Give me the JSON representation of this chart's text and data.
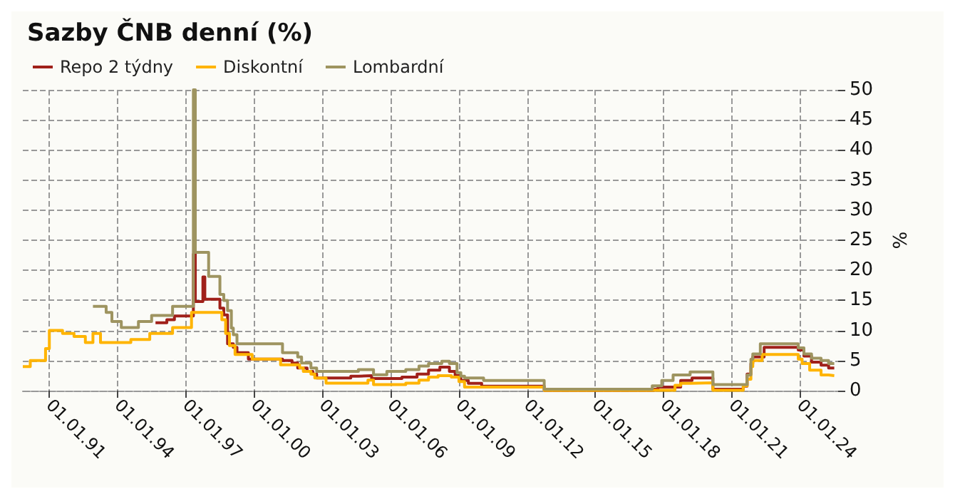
{
  "chart_data": {
    "type": "step",
    "title": "Sazby ČNB denní (%)",
    "ylabel": "%",
    "legend": "top left",
    "grid": true,
    "marker": "none",
    "line_style": "solid",
    "xlim": [
      "1989-11-01",
      "2025-09-01"
    ],
    "ylim": [
      0,
      50
    ],
    "yticks": [
      0,
      5,
      10,
      15,
      20,
      25,
      30,
      35,
      40,
      45,
      50
    ],
    "xticks": [
      {
        "value": "1991-01-01",
        "label": "01.01.91"
      },
      {
        "value": "1994-01-01",
        "label": "01.01.94"
      },
      {
        "value": "1997-01-01",
        "label": "01.01.97"
      },
      {
        "value": "2000-01-01",
        "label": "01.01.00"
      },
      {
        "value": "2003-01-01",
        "label": "01.01.03"
      },
      {
        "value": "2006-01-01",
        "label": "01.01.06"
      },
      {
        "value": "2009-01-01",
        "label": "01.01.09"
      },
      {
        "value": "2012-01-01",
        "label": "01.01.12"
      },
      {
        "value": "2015-01-01",
        "label": "01.01.15"
      },
      {
        "value": "2018-01-01",
        "label": "01.01.18"
      },
      {
        "value": "2021-01-01",
        "label": "01.01.21"
      },
      {
        "value": "2024-01-01",
        "label": "01.01.24"
      }
    ],
    "series": [
      {
        "name": "Repo 2 týdny",
        "color": "#a0201a",
        "x": [
          "1995-09",
          "1996-03",
          "1996-07",
          "1997-05",
          "1997-06",
          "1997-10",
          "1997-11",
          "1998-07",
          "1998-09",
          "1998-11",
          "1999-02",
          "1999-04",
          "1999-10",
          "2001-04",
          "2001-09",
          "2001-12",
          "2002-05",
          "2002-08",
          "2002-10",
          "2004-04",
          "2004-08",
          "2005-03",
          "2006-07",
          "2007-03",
          "2007-09",
          "2008-03",
          "2008-08",
          "2008-11",
          "2009-01",
          "2009-02",
          "2009-06",
          "2010-01",
          "2012-10",
          "2017-08",
          "2017-10",
          "2018-10",
          "2019-04",
          "2020-03",
          "2021-07",
          "2021-09",
          "2021-11",
          "2021-12",
          "2022-06",
          "2023-12",
          "2024-03",
          "2024-07",
          "2024-12",
          "2025-04",
          "2025-07"
        ],
        "values": [
          11.3,
          11.8,
          12.4,
          22.7,
          14.8,
          18.9,
          15.2,
          13.7,
          12.6,
          7.8,
          7.2,
          6.3,
          5.25,
          5,
          4.6,
          3.75,
          3.2,
          2.75,
          2.1,
          2.4,
          2.5,
          2,
          2.25,
          2.75,
          3.4,
          3.9,
          3.2,
          2.5,
          2.4,
          1.7,
          1.2,
          0.75,
          0.05,
          0.25,
          0.6,
          1.7,
          2.1,
          0.25,
          0.75,
          2.75,
          4.5,
          5.6,
          7.2,
          6.75,
          5.75,
          4.75,
          4.25,
          3.75,
          3.75
        ]
      },
      {
        "name": "Diskontní",
        "color": "#ffb400",
        "x": [
          "1989-11",
          "1990-03",
          "1990-11",
          "1991-01",
          "1991-08",
          "1992-02",
          "1992-08",
          "1992-12",
          "1993-04",
          "1994-08",
          "1995-06",
          "1996-06",
          "1997-04",
          "1998-08",
          "1998-10",
          "1998-12",
          "1999-03",
          "1999-12",
          "2001-03",
          "2002-01",
          "2002-03",
          "2002-07",
          "2002-09",
          "2003-03",
          "2005-01",
          "2005-04",
          "2006-09",
          "2007-04",
          "2007-09",
          "2008-02",
          "2008-09",
          "2009-01",
          "2009-04",
          "2012-10",
          "2018-07",
          "2018-10",
          "2019-03",
          "2020-03",
          "2021-07",
          "2021-09",
          "2021-11",
          "2021-12",
          "2022-05",
          "2023-12",
          "2024-02",
          "2024-06",
          "2024-12",
          "2025-04",
          "2025-07"
        ],
        "values": [
          4,
          5,
          7,
          10,
          9.5,
          9,
          8,
          9.5,
          8,
          8.5,
          9.5,
          10.5,
          13,
          11.8,
          9.5,
          7.5,
          6,
          5.25,
          4.3,
          3.8,
          3.2,
          2.75,
          2.1,
          1.25,
          1.75,
          1,
          1.25,
          1.75,
          2.25,
          2.5,
          2.25,
          1.5,
          0.6,
          0.05,
          0.9,
          1.2,
          1.3,
          0.05,
          0.8,
          1.9,
          4,
          5,
          6,
          5.25,
          4.5,
          3.4,
          2.6,
          2.5,
          2.5
        ]
      },
      {
        "name": "Lombardní",
        "color": "#9e9460",
        "x": [
          "1992-12",
          "1993-07",
          "1993-10",
          "1994-03",
          "1994-12",
          "1995-07",
          "1996-06",
          "1997-05",
          "1997-06",
          "1998-01",
          "1998-07",
          "1998-09",
          "1998-11",
          "1999-01",
          "1999-02",
          "1999-04",
          "2001-04",
          "2001-12",
          "2002-02",
          "2002-07",
          "2002-10",
          "2004-08",
          "2005-04",
          "2005-11",
          "2006-09",
          "2007-04",
          "2007-09",
          "2008-04",
          "2008-08",
          "2008-12",
          "2009-02",
          "2009-04",
          "2010-02",
          "2012-10",
          "2017-07",
          "2017-12",
          "2018-06",
          "2019-03",
          "2020-03",
          "2021-09",
          "2021-11",
          "2021-12",
          "2022-04",
          "2023-12",
          "2024-03",
          "2024-07",
          "2024-12",
          "2025-04",
          "2025-07"
        ],
        "values": [
          14,
          13,
          11.5,
          10.5,
          11.5,
          12.5,
          14,
          50,
          23,
          19,
          16,
          15,
          13.3,
          10.4,
          9.3,
          7.8,
          6.3,
          5.6,
          4.6,
          3.75,
          3.2,
          3.5,
          2.65,
          3.2,
          3.5,
          4.1,
          4.5,
          4.9,
          4.5,
          3,
          2.4,
          2.1,
          1.7,
          0.25,
          0.8,
          1.7,
          2.6,
          3.1,
          1,
          2.6,
          5.2,
          6.1,
          7.8,
          7.1,
          6.1,
          5.4,
          5,
          4.5,
          4.5
        ]
      }
    ]
  }
}
